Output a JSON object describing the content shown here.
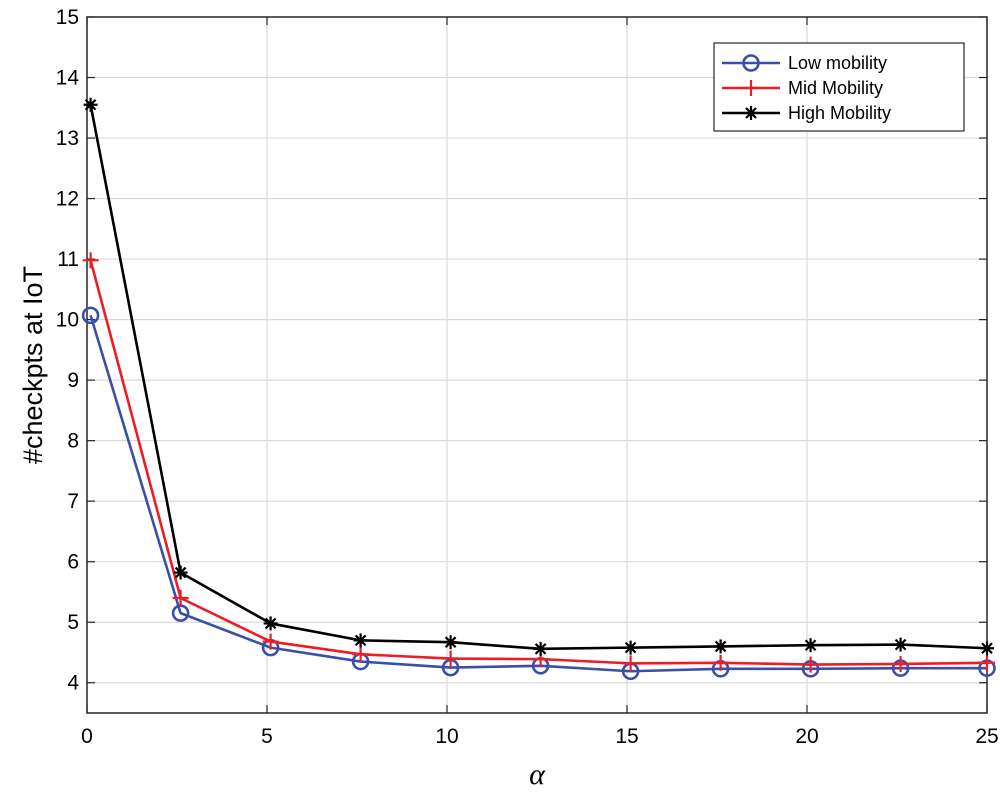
{
  "chart_data": {
    "type": "line",
    "title": "",
    "xlabel": "α",
    "ylabel": "#checkpts at IoT",
    "xlim": [
      0,
      25
    ],
    "ylim": [
      3.5,
      15
    ],
    "xticks": [
      0,
      5,
      10,
      15,
      20,
      25
    ],
    "yticks": [
      4,
      5,
      6,
      7,
      8,
      9,
      10,
      11,
      12,
      13,
      14,
      15
    ],
    "grid": true,
    "legend_position": "top-right",
    "x": [
      0.1,
      2.6,
      5.1,
      7.6,
      10.1,
      12.6,
      15.1,
      17.6,
      20.1,
      22.6,
      25
    ],
    "series": [
      {
        "name": "Low mobility",
        "color": "#3b4fa8",
        "marker": "circle",
        "values": [
          10.07,
          5.15,
          4.58,
          4.35,
          4.25,
          4.28,
          4.19,
          4.23,
          4.23,
          4.24,
          4.24
        ]
      },
      {
        "name": "Mid Mobility",
        "color": "#ee1c25",
        "marker": "plus",
        "values": [
          10.98,
          5.4,
          4.68,
          4.47,
          4.4,
          4.39,
          4.32,
          4.33,
          4.3,
          4.31,
          4.33
        ]
      },
      {
        "name": "High Mobility",
        "color": "#000000",
        "marker": "asterisk",
        "values": [
          13.55,
          5.82,
          4.98,
          4.7,
          4.67,
          4.56,
          4.58,
          4.6,
          4.62,
          4.63,
          4.57
        ]
      }
    ]
  }
}
